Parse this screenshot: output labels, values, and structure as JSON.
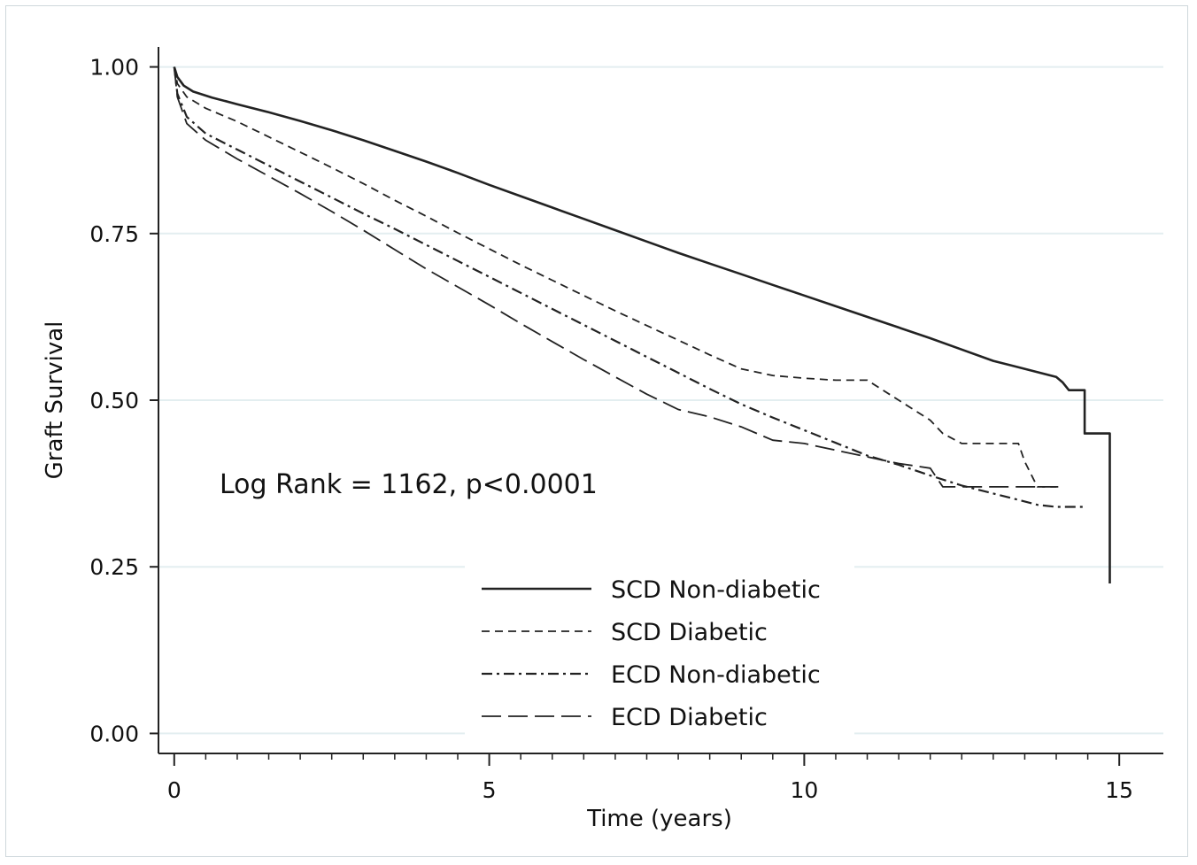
{
  "chart_data": {
    "type": "line",
    "step": true,
    "title": "",
    "xlabel": "Time (years)",
    "ylabel": "Graft Survival",
    "xlim": [
      -0.25,
      15.7
    ],
    "ylim": [
      -0.03,
      1.03
    ],
    "xticks": [
      0,
      5,
      10,
      15
    ],
    "xtick_labels": [
      "0",
      "5",
      "10",
      "15"
    ],
    "xminor_step": 0.5,
    "yticks": [
      0,
      0.25,
      0.5,
      0.75,
      1.0
    ],
    "ytick_labels": [
      "0.00",
      "0.25",
      "0.50",
      "0.75",
      "1.00"
    ],
    "grid": "horizontal",
    "legend_position": "bottom-center",
    "annotation": "Log Rank = 1162, p<0.0001",
    "series": [
      {
        "name": "SCD Non-diabetic",
        "style": "solid",
        "x": [
          0,
          0.05,
          0.15,
          0.3,
          0.6,
          1,
          1.5,
          2,
          2.5,
          3,
          3.5,
          4,
          4.5,
          5,
          5.5,
          6,
          6.5,
          7,
          7.5,
          8,
          8.5,
          9,
          9.5,
          10,
          10.5,
          11,
          11.5,
          12,
          12.5,
          13,
          13.5,
          14,
          14.1,
          14.2,
          14.45,
          14.45,
          14.5,
          14.85,
          14.85
        ],
        "y": [
          1.0,
          0.985,
          0.972,
          0.963,
          0.954,
          0.944,
          0.932,
          0.919,
          0.905,
          0.89,
          0.874,
          0.858,
          0.841,
          0.823,
          0.806,
          0.789,
          0.772,
          0.755,
          0.738,
          0.721,
          0.705,
          0.689,
          0.673,
          0.657,
          0.641,
          0.625,
          0.609,
          0.593,
          0.576,
          0.559,
          0.547,
          0.535,
          0.527,
          0.515,
          0.515,
          0.45,
          0.45,
          0.45,
          0.225
        ]
      },
      {
        "name": "SCD Diabetic",
        "style": "dashed",
        "x": [
          0,
          0.05,
          0.2,
          0.5,
          1,
          1.5,
          2,
          2.5,
          3,
          3.5,
          4,
          4.5,
          5,
          5.5,
          6,
          6.5,
          7,
          7.5,
          8,
          8.5,
          9,
          9.5,
          10,
          10.5,
          11,
          11.5,
          12,
          12.2,
          12.5,
          13,
          13.4,
          13.5,
          13.7,
          14.1
        ],
        "y": [
          1.0,
          0.975,
          0.955,
          0.938,
          0.918,
          0.895,
          0.872,
          0.849,
          0.825,
          0.8,
          0.776,
          0.751,
          0.727,
          0.703,
          0.68,
          0.657,
          0.634,
          0.612,
          0.59,
          0.568,
          0.547,
          0.537,
          0.533,
          0.53,
          0.53,
          0.5,
          0.47,
          0.45,
          0.435,
          0.435,
          0.435,
          0.408,
          0.37,
          0.37
        ]
      },
      {
        "name": "ECD Non-diabetic",
        "style": "dashdot",
        "x": [
          0,
          0.05,
          0.2,
          0.5,
          1,
          1.5,
          2,
          2.5,
          3,
          3.5,
          4,
          4.5,
          5,
          5.5,
          6,
          6.5,
          7,
          7.5,
          8,
          8.5,
          9,
          9.5,
          10,
          10.5,
          11,
          11.5,
          12,
          12.5,
          13,
          13.5,
          13.7,
          14,
          14.45
        ],
        "y": [
          1.0,
          0.96,
          0.925,
          0.9,
          0.876,
          0.852,
          0.828,
          0.804,
          0.78,
          0.757,
          0.733,
          0.709,
          0.685,
          0.661,
          0.637,
          0.613,
          0.589,
          0.565,
          0.541,
          0.517,
          0.494,
          0.474,
          0.455,
          0.436,
          0.417,
          0.403,
          0.387,
          0.372,
          0.36,
          0.348,
          0.343,
          0.34,
          0.34
        ]
      },
      {
        "name": "ECD Diabetic",
        "style": "longdash",
        "x": [
          0,
          0.05,
          0.2,
          0.5,
          1,
          1.5,
          2,
          2.5,
          3,
          3.5,
          4,
          4.5,
          5,
          5.5,
          6,
          6.5,
          7,
          7.5,
          8,
          8.5,
          9,
          9.5,
          10,
          10.5,
          11,
          11.5,
          12,
          12.2,
          12.5,
          13,
          13.5,
          14,
          13.95
        ],
        "y": [
          1.0,
          0.955,
          0.915,
          0.89,
          0.862,
          0.836,
          0.81,
          0.783,
          0.755,
          0.726,
          0.697,
          0.67,
          0.643,
          0.615,
          0.588,
          0.561,
          0.535,
          0.509,
          0.486,
          0.475,
          0.46,
          0.44,
          0.435,
          0.425,
          0.415,
          0.405,
          0.398,
          0.37,
          0.37,
          0.37,
          0.37,
          0.37,
          0.37
        ]
      }
    ]
  }
}
